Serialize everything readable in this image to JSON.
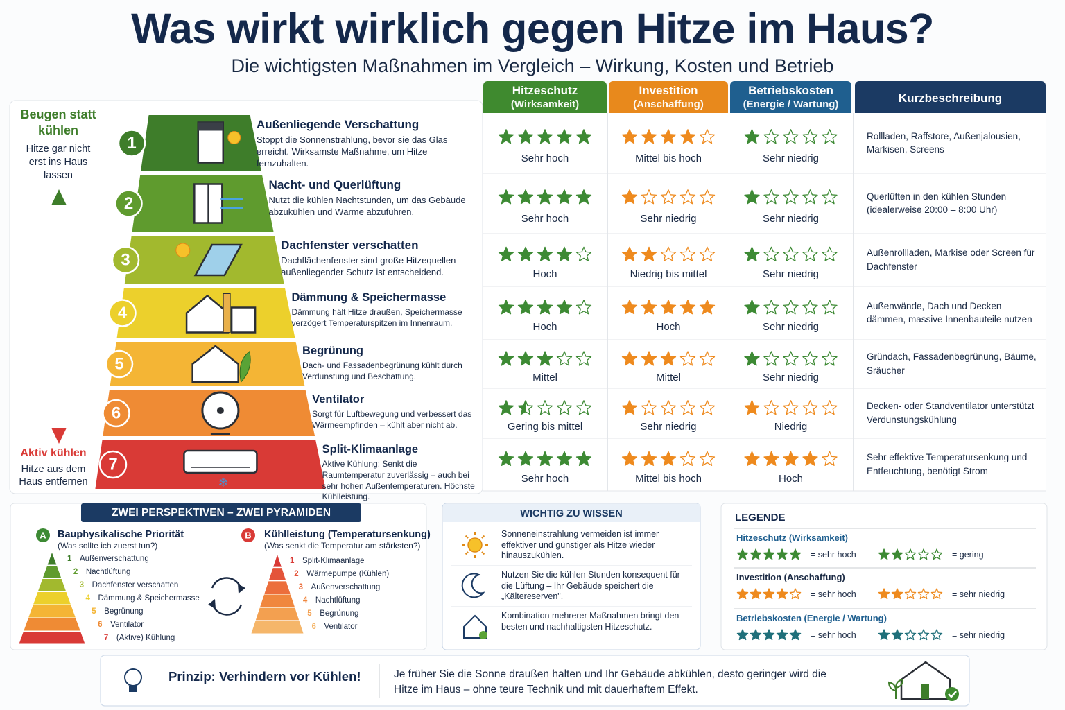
{
  "header": {
    "title": "Was wirkt wirklich gegen Hitze im Haus?",
    "subtitle": "Die wichtigsten Maßnahmen im Vergleich – Wirkung, Kosten und Betrieb"
  },
  "side": {
    "top_title": "Beugen statt kühlen",
    "top_text": "Hitze gar nicht erst ins Haus lassen",
    "bottom_title": "Aktiv kühlen",
    "bottom_text": "Hitze aus dem Haus entfernen"
  },
  "columns": [
    {
      "title": "Hitzeschutz",
      "sub": "(Wirksamkeit)",
      "color": "#3f8a2f",
      "star_color": "#3d8a34"
    },
    {
      "title": "Investition",
      "sub": "(Anschaffung)",
      "color": "#e8891c",
      "star_color": "#ee8a1e"
    },
    {
      "title": "Betriebskosten",
      "sub": "(Energie / Wartung)",
      "color": "#1f5f8f",
      "star_color": "#3d8a34"
    },
    {
      "title": "Kurzbeschreibung",
      "color": "#1b3a63"
    }
  ],
  "measures": [
    {
      "number": 1,
      "title": "Außenliegende Verschattung",
      "text": "Stoppt die Sonnenstrahlung, bevor sie das Glas erreicht. Wirksamste Maßnahme, um Hitze fernzuhalten.",
      "color": "#3e7d2a",
      "ratings": [
        {
          "stars": 5,
          "label": "Sehr hoch"
        },
        {
          "stars": 4,
          "label": "Mittel bis hoch"
        },
        {
          "stars": 1,
          "label": "Sehr niedrig"
        }
      ],
      "description": "Rollladen, Raffstore, Außenjalousien, Markisen, Screens"
    },
    {
      "number": 2,
      "title": "Nacht- und Querlüftung",
      "text": "Nutzt die kühlen Nachtstunden, um das Gebäude abzukühlen und Wärme abzuführen.",
      "color": "#5f9b2e",
      "ratings": [
        {
          "stars": 5,
          "label": "Sehr hoch"
        },
        {
          "stars": 1,
          "label": "Sehr niedrig"
        },
        {
          "stars": 1,
          "label": "Sehr niedrig"
        }
      ],
      "description": "Querlüften in den kühlen Stunden (idealerweise 20:00 – 8:00 Uhr)"
    },
    {
      "number": 3,
      "title": "Dachfenster verschatten",
      "text": "Dachflächenfenster sind große Hitzequellen – außenliegender Schutz ist entscheidend.",
      "color": "#a2b92e",
      "ratings": [
        {
          "stars": 4,
          "label": "Hoch"
        },
        {
          "stars": 2,
          "label": "Niedrig bis mittel"
        },
        {
          "stars": 1,
          "label": "Sehr niedrig"
        }
      ],
      "description": "Außenrollladen, Markise oder Screen für Dachfenster"
    },
    {
      "number": 4,
      "title": "Dämmung & Speichermasse",
      "text": "Dämmung hält Hitze draußen, Speichermasse verzögert Temperaturspitzen im Innenraum.",
      "color": "#ecd02c",
      "ratings": [
        {
          "stars": 4,
          "label": "Hoch"
        },
        {
          "stars": 5,
          "label": "Hoch"
        },
        {
          "stars": 1,
          "label": "Sehr niedrig"
        }
      ],
      "description": "Außenwände, Dach und Decken dämmen, massive Innenbauteile nutzen"
    },
    {
      "number": 5,
      "title": "Begrünung",
      "text": "Dach- und Fassadenbegrünung kühlt durch Verdunstung und Beschattung.",
      "color": "#f4b535",
      "ratings": [
        {
          "stars": 3,
          "label": "Mittel"
        },
        {
          "stars": 3,
          "label": "Mittel"
        },
        {
          "stars": 1,
          "label": "Sehr niedrig"
        }
      ],
      "description": "Gründach, Fassadenbegrünung, Bäume, Sräucher"
    },
    {
      "number": 6,
      "title": "Ventilator",
      "text": "Sorgt für Luftbewegung und verbessert das Wärmeempfinden – kühlt aber nicht ab.",
      "color": "#ef8b34",
      "ratings": [
        {
          "stars": 1.5,
          "label": "Gering bis mittel"
        },
        {
          "stars": 1,
          "label": "Sehr niedrig"
        },
        {
          "stars": 1,
          "label": "Niedrig",
          "color": "#ee8a1e"
        }
      ],
      "description": "Decken- oder Standventilator unterstützt Verdunstungskühlung"
    },
    {
      "number": 7,
      "title": "Split-Klimaanlage",
      "text": "Aktive Kühlung: Senkt die Raumtemperatur zuverlässig – auch bei sehr hohen Außentemperaturen. Höchste Kühlleistung.",
      "color": "#d93a36",
      "ratings": [
        {
          "stars": 5,
          "label": "Sehr hoch"
        },
        {
          "stars": 3,
          "label": "Mittel bis hoch"
        },
        {
          "stars": 4,
          "label": "Hoch",
          "color": "#ee8a1e"
        }
      ],
      "description": "Sehr effektive Temperatursenkung und Entfeuchtung, benötigt Strom"
    }
  ],
  "perspectives": {
    "title": "ZWEI PERSPEKTIVEN – ZWEI PYRAMIDEN",
    "groups": [
      {
        "badge": "A",
        "color": "#3d8a34",
        "title": "Bauphysikalische Priorität",
        "sub": "(Was sollte ich zuerst tun?)",
        "items": [
          {
            "number": 1,
            "label": "Außenverschattung",
            "color": "#3e7d2a"
          },
          {
            "number": 2,
            "label": "Nachtlüftung",
            "color": "#5f9b2e"
          },
          {
            "number": 3,
            "label": "Dachfenster verschatten",
            "color": "#a2b92e"
          },
          {
            "number": 4,
            "label": "Dämmung & Speichermasse",
            "color": "#ecd02c"
          },
          {
            "number": 5,
            "label": "Begrünung",
            "color": "#f4b535"
          },
          {
            "number": 6,
            "label": "Ventilator",
            "color": "#ef8b34"
          },
          {
            "number": 7,
            "label": "(Aktive) Kühlung",
            "color": "#d93a36"
          }
        ]
      },
      {
        "badge": "B",
        "color": "#d93a36",
        "title": "Kühlleistung (Temperatursenkung)",
        "sub": "(Was senkt die Temperatur am stärksten?)",
        "items": [
          {
            "number": 1,
            "label": "Split-Klimaanlage",
            "color": "#d93a36"
          },
          {
            "number": 2,
            "label": "Wärmepumpe (Kühlen)",
            "color": "#e4543a"
          },
          {
            "number": 3,
            "label": "Außenverschattung",
            "color": "#ec6e3c"
          },
          {
            "number": 4,
            "label": "Nachtlüftung",
            "color": "#f0873e"
          },
          {
            "number": 5,
            "label": "Begrünung",
            "color": "#f3a050"
          },
          {
            "number": 6,
            "label": "Ventilator",
            "color": "#f5b66a"
          }
        ]
      }
    ]
  },
  "info": {
    "title": "WICHTIG ZU WISSEN",
    "items": [
      "Sonneneinstrahlung vermeiden ist immer effektiver und günstiger als Hitze wieder hinauszukühlen.",
      "Nutzen Sie die kühlen Stunden konsequent für die Lüftung – Ihr Gebäude speichert die „Kältereserven\".",
      "Kombination mehrerer Maßnahmen bringt den besten und nachhaltigsten Hitzeschutz."
    ]
  },
  "legend": {
    "title": "LEGENDE",
    "groups": [
      {
        "title": "Hitzeschutz (Wirksamkeit)",
        "title_color": "#1f5f8f",
        "star_color": "#3d8a34",
        "items": [
          {
            "stars": 5,
            "label": "= sehr hoch"
          },
          {
            "stars": 2,
            "label": "= gering"
          }
        ]
      },
      {
        "title": "Investition (Anschaffung)",
        "title_color": "#1b2a44",
        "star_color": "#ee8a1e",
        "items": [
          {
            "stars": 4,
            "label": "= sehr hoch"
          },
          {
            "stars": 2,
            "label": "= sehr niedrig"
          }
        ]
      },
      {
        "title": "Betriebskosten (Energie / Wartung)",
        "title_color": "#1f5f8f",
        "star_color": "#1f6f7a",
        "items": [
          {
            "stars": 5,
            "label": "= sehr hoch"
          },
          {
            "stars": 2,
            "label": "= sehr niedrig"
          }
        ]
      }
    ]
  },
  "footer": {
    "title": "Prinzip: Verhindern vor Kühlen!",
    "text": "Je früher Sie die Sonne draußen halten und Ihr Gebäude abkühlen, desto geringer wird die Hitze im Haus – ohne teure Technik und mit dauerhaftem Effekt."
  }
}
